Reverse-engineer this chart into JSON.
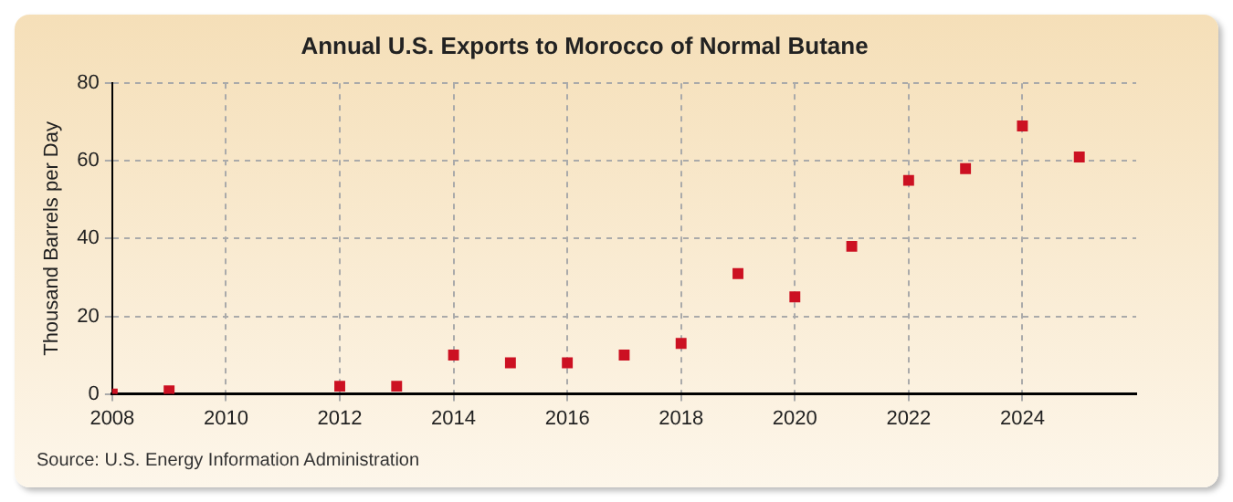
{
  "chart_data": {
    "type": "scatter",
    "title": "Annual U.S. Exports to Morocco of Normal Butane",
    "ylabel": "Thousand Barrels per Day",
    "x": [
      2008,
      2009,
      2012,
      2013,
      2014,
      2015,
      2016,
      2017,
      2018,
      2019,
      2020,
      2021,
      2022,
      2023,
      2024,
      2025
    ],
    "series": [
      {
        "color": "#cc1122",
        "values": [
          0,
          0.8,
          2,
          2,
          10,
          8,
          8,
          10,
          13,
          31,
          25,
          38,
          55,
          58,
          69,
          61
        ]
      }
    ],
    "xlim": [
      2008,
      2026
    ],
    "xticks": [
      2008,
      2010,
      2012,
      2014,
      2016,
      2018,
      2020,
      2022,
      2024
    ],
    "ylim": [
      0,
      80
    ],
    "yticks": [
      0,
      20,
      40,
      60,
      80
    ],
    "grid": true,
    "legend": false,
    "marker": "square",
    "annotations": [
      "Source: U.S. Energy Information Administration"
    ]
  }
}
